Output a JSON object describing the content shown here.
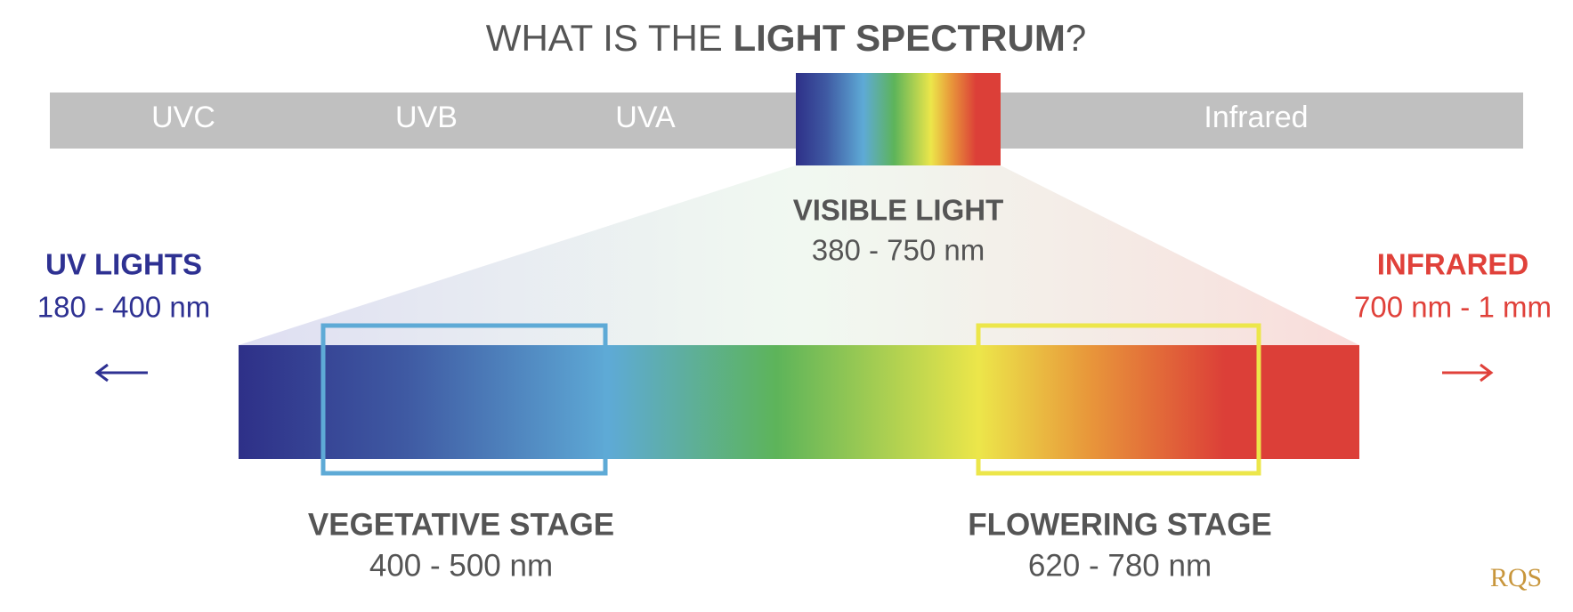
{
  "title": {
    "lead": "WHAT IS THE ",
    "emphasis": "LIGHT SPECTRUM",
    "tail": "?"
  },
  "bands": [
    "UVC",
    "UVB",
    "UVA",
    "Infrared"
  ],
  "visible": {
    "label": "VISIBLE LIGHT",
    "range": "380 - 750 nm"
  },
  "uv": {
    "label": "UV LIGHTS",
    "range": "180 - 400 nm"
  },
  "infrared": {
    "label": "INFRARED",
    "range": "700 nm - 1 mm"
  },
  "stages": [
    {
      "label": "VEGETATIVE STAGE",
      "range": "400 - 500 nm"
    },
    {
      "label": "FLOWERING STAGE",
      "range": "620 - 780 nm"
    }
  ],
  "logo": "RQS"
}
